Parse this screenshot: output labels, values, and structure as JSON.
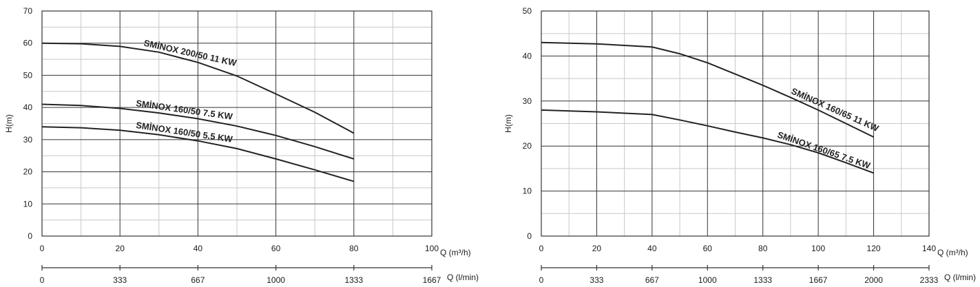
{
  "chart_data": [
    {
      "type": "line",
      "ylabel": "H(m)",
      "xlabel": "Q (m³/h)",
      "x2label": "Q (l/min)",
      "xlim": [
        0,
        100
      ],
      "ylim": [
        0,
        70
      ],
      "x_ticks": [
        0,
        20,
        40,
        60,
        80,
        100
      ],
      "y_ticks": [
        0,
        10,
        20,
        30,
        40,
        50,
        60,
        70
      ],
      "x2_ticks": [
        0,
        333,
        667,
        1000,
        1333,
        1667
      ],
      "grid": true,
      "series": [
        {
          "name": "SMİNOX 200/50 11 KW",
          "x": [
            0,
            10,
            20,
            30,
            40,
            50,
            60,
            70,
            80
          ],
          "y": [
            60,
            59.8,
            59,
            57.2,
            54,
            49.8,
            44.2,
            38.5,
            32
          ]
        },
        {
          "name": "SMİNOX 160/50 7.5 KW",
          "x": [
            0,
            10,
            20,
            30,
            40,
            50,
            60,
            70,
            80
          ],
          "y": [
            41,
            40.6,
            39.7,
            38.3,
            36.5,
            34.2,
            31.3,
            27.8,
            24
          ]
        },
        {
          "name": "SMİNOX 160/50 5.5 KW",
          "x": [
            0,
            10,
            20,
            30,
            40,
            50,
            60,
            70,
            80
          ],
          "y": [
            34,
            33.7,
            32.9,
            31.5,
            29.6,
            27.2,
            24,
            20.6,
            17
          ]
        }
      ]
    },
    {
      "type": "line",
      "ylabel": "H(m)",
      "xlabel": "Q (m³/h)",
      "x2label": "Q (l/min)",
      "xlim": [
        0,
        140
      ],
      "ylim": [
        0,
        50
      ],
      "x_ticks": [
        0,
        20,
        40,
        60,
        80,
        100,
        120,
        140
      ],
      "y_ticks": [
        0,
        10,
        20,
        30,
        40,
        50
      ],
      "x2_ticks": [
        0,
        333,
        667,
        1000,
        1333,
        1667,
        2000,
        2333
      ],
      "grid": true,
      "series": [
        {
          "name": "SMİNOX 160/65 11 KW",
          "x": [
            0,
            20,
            40,
            50,
            60,
            70,
            80,
            90,
            100,
            110,
            120
          ],
          "y": [
            43,
            42.7,
            42,
            40.5,
            38.5,
            36,
            33.5,
            30.8,
            28,
            25,
            22
          ]
        },
        {
          "name": "SMİNOX 160/65 7.5 KW",
          "x": [
            0,
            20,
            40,
            50,
            60,
            70,
            80,
            90,
            100,
            110,
            120
          ],
          "y": [
            28,
            27.6,
            27,
            25.8,
            24.5,
            23.1,
            21.8,
            20.3,
            18.5,
            16.3,
            14
          ]
        }
      ]
    }
  ]
}
